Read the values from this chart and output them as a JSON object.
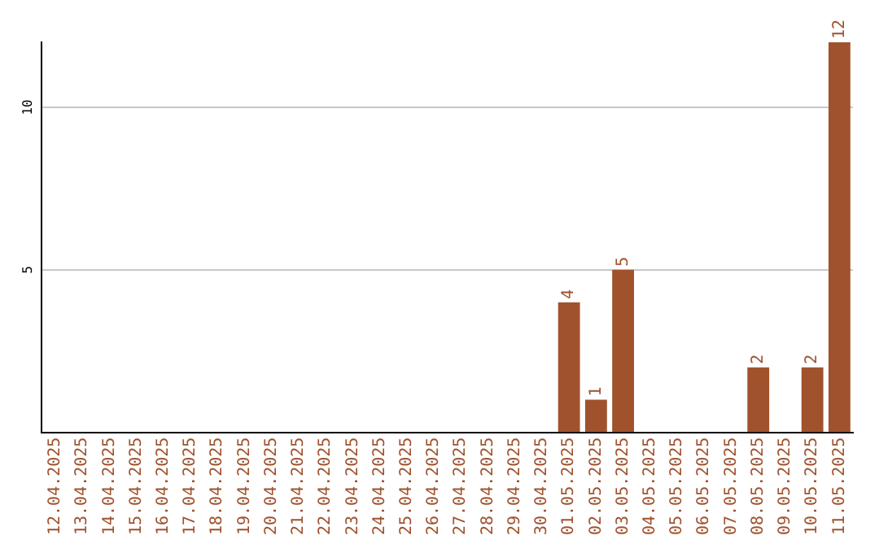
{
  "chart_data": {
    "type": "bar",
    "categories": [
      "12.04.2025",
      "13.04.2025",
      "14.04.2025",
      "15.04.2025",
      "16.04.2025",
      "17.04.2025",
      "18.04.2025",
      "19.04.2025",
      "20.04.2025",
      "21.04.2025",
      "22.04.2025",
      "23.04.2025",
      "24.04.2025",
      "25.04.2025",
      "26.04.2025",
      "27.04.2025",
      "28.04.2025",
      "29.04.2025",
      "30.04.2025",
      "01.05.2025",
      "02.05.2025",
      "03.05.2025",
      "04.05.2025",
      "05.05.2025",
      "06.05.2025",
      "07.05.2025",
      "08.05.2025",
      "09.05.2025",
      "10.05.2025",
      "11.05.2025"
    ],
    "values": [
      0,
      0,
      0,
      0,
      0,
      0,
      0,
      0,
      0,
      0,
      0,
      0,
      0,
      0,
      0,
      0,
      0,
      0,
      0,
      4,
      1,
      5,
      0,
      0,
      0,
      0,
      2,
      0,
      2,
      12
    ],
    "value_labels": [
      null,
      null,
      null,
      null,
      null,
      null,
      null,
      null,
      null,
      null,
      null,
      null,
      null,
      null,
      null,
      null,
      null,
      null,
      null,
      "4",
      "1",
      "5",
      null,
      null,
      null,
      null,
      "2",
      null,
      "2",
      "12"
    ],
    "color": "#a0522d",
    "ylim": [
      0,
      12
    ],
    "yticks": [
      5,
      10
    ],
    "grid": "y",
    "legend": false
  }
}
